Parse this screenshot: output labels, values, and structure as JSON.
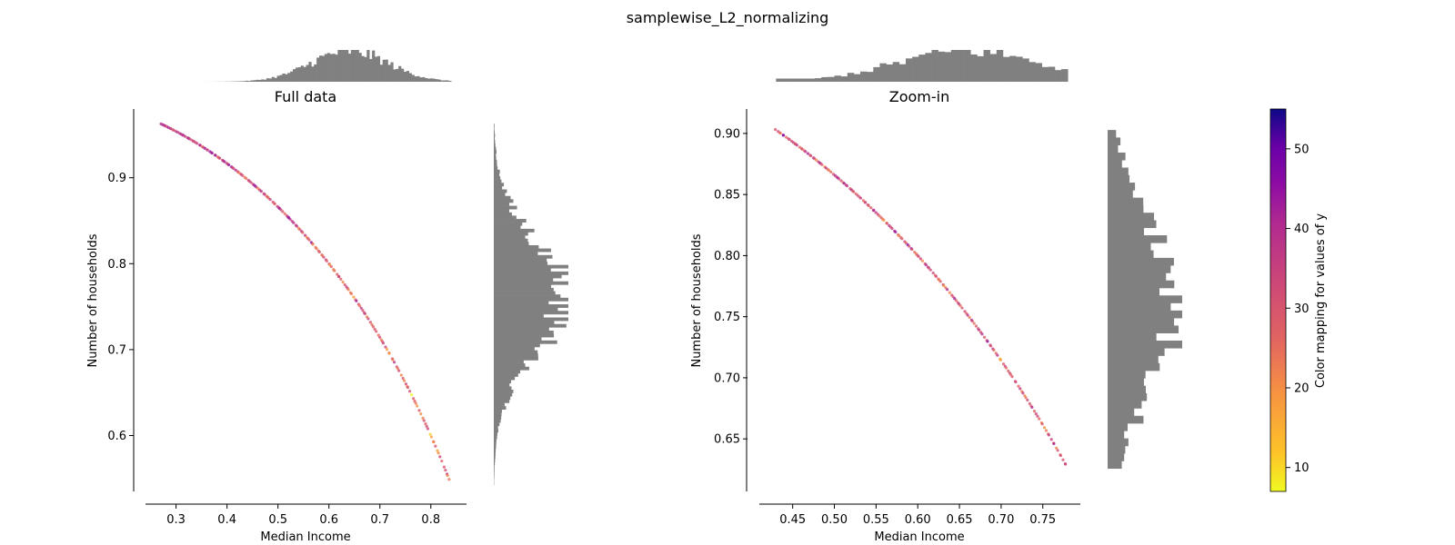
{
  "figure_title": "samplewise_L2_normalizing",
  "chart_data": [
    {
      "type": "scatter",
      "title": "Full data",
      "xlabel": "Median Income",
      "ylabel": "Number of households",
      "xlim": [
        0.24,
        0.87
      ],
      "ylim": [
        0.535,
        0.98
      ],
      "xticks": [
        "0.3",
        "0.4",
        "0.5",
        "0.6",
        "0.7",
        "0.8"
      ],
      "yticks": [
        "0.6",
        "0.7",
        "0.8",
        "0.9"
      ],
      "curve": "y = sqrt(1 - x^2)",
      "x_range_of_points": [
        0.27,
        0.84
      ],
      "marginal_histograms": {
        "top": "x distribution",
        "right": "y distribution"
      }
    },
    {
      "type": "scatter",
      "title": "Zoom-in",
      "xlabel": "Median Income",
      "ylabel": "Number of households",
      "xlim": [
        0.41,
        0.795
      ],
      "ylim": [
        0.607,
        0.92
      ],
      "xticks": [
        "0.45",
        "0.50",
        "0.55",
        "0.60",
        "0.65",
        "0.70",
        "0.75"
      ],
      "yticks": [
        "0.65",
        "0.70",
        "0.75",
        "0.80",
        "0.85",
        "0.90"
      ],
      "curve": "y = sqrt(1 - x^2)",
      "x_range_of_points": [
        0.43,
        0.78
      ],
      "marginal_histograms": {
        "top": "x distribution",
        "right": "y distribution"
      }
    }
  ],
  "colorbar": {
    "label": "Color mapping for values of y",
    "range": [
      7,
      55
    ],
    "ticks": [
      "10",
      "20",
      "30",
      "40",
      "50"
    ],
    "colormap": "plasma"
  },
  "colors": {
    "histogram": "#808080",
    "axis": "#000000"
  }
}
